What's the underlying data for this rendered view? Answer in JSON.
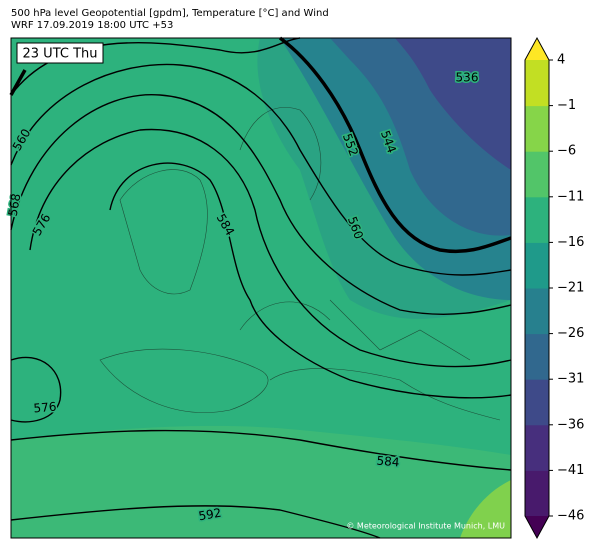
{
  "header": {
    "line1": "500 hPa level Geopotential [gpdm], Temperature [°C] and Wind",
    "line2": "WRF 17.09.2019 18:00 UTC +53"
  },
  "time_label": "23 UTC Thu",
  "contour_labels": [
    "536",
    "560",
    "552",
    "544",
    "568",
    "576",
    "584",
    "560",
    "576",
    "584",
    "592"
  ],
  "credit": "© Meteorological Institute Munich, LMU",
  "colorbar": {
    "ticks": [
      4,
      {
        "value": -1,
        "label": "−1"
      },
      {
        "value": -6,
        "label": "−6"
      },
      {
        "value": -11,
        "label": "−11"
      },
      {
        "value": -16,
        "label": "−16"
      },
      {
        "value": -21,
        "label": "−21"
      },
      {
        "value": -26,
        "label": "−26"
      },
      {
        "value": -31,
        "label": "−31"
      },
      {
        "value": -36,
        "label": "−36"
      },
      {
        "value": -41,
        "label": "−41"
      },
      {
        "value": -46,
        "label": "−46"
      }
    ],
    "colors": [
      "#481a6c",
      "#472f7d",
      "#3e4a89",
      "#31688e",
      "#27808e",
      "#1f9a8a",
      "#2db27d",
      "#52c569",
      "#86d549",
      "#c2df23"
    ],
    "extend_colors": [
      "#440154",
      "#fde725"
    ]
  }
}
